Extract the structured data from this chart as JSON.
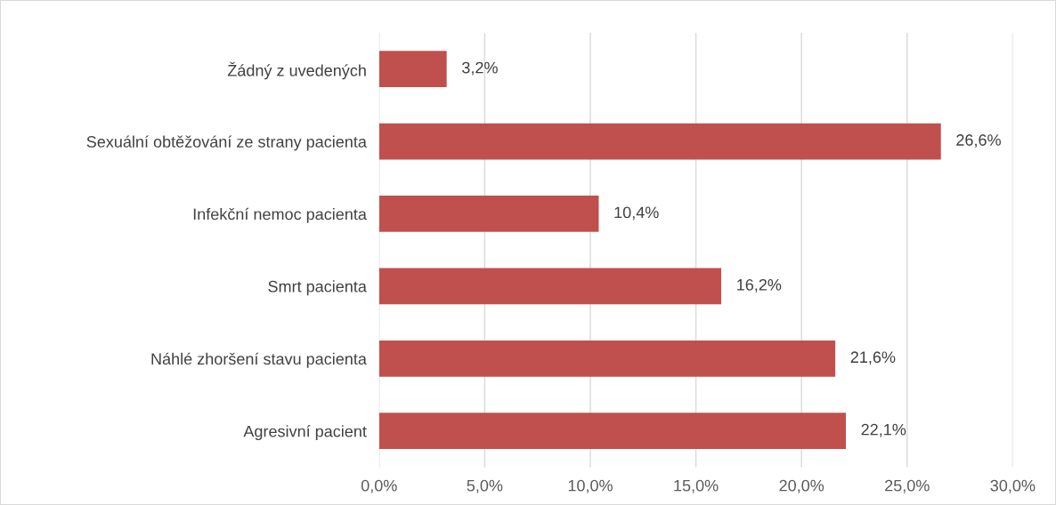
{
  "chart_data": {
    "type": "bar",
    "orientation": "horizontal",
    "categories": [
      "Žádný z uvedených",
      "Sexuální obtěžování ze strany pacienta",
      "Infekční nemoc pacienta",
      "Smrt pacienta",
      "Náhlé zhoršení stavu pacienta",
      "Agresivní pacient"
    ],
    "values": [
      3.2,
      26.6,
      10.4,
      16.2,
      21.6,
      22.1
    ],
    "value_labels": [
      "3,2%",
      "26,6%",
      "10,4%",
      "16,2%",
      "21,6%",
      "22,1%"
    ],
    "color": "#c0504d",
    "xlim": [
      0,
      30
    ],
    "xticks": [
      {
        "value": 0,
        "label": "0,0%"
      },
      {
        "value": 5,
        "label": "5,0%"
      },
      {
        "value": 10,
        "label": "10,0%"
      },
      {
        "value": 15,
        "label": "15,0%"
      },
      {
        "value": 20,
        "label": "20,0%"
      },
      {
        "value": 25,
        "label": "25,0%"
      },
      {
        "value": 30,
        "label": "30,0%"
      }
    ],
    "grid": "x",
    "legend": false
  }
}
